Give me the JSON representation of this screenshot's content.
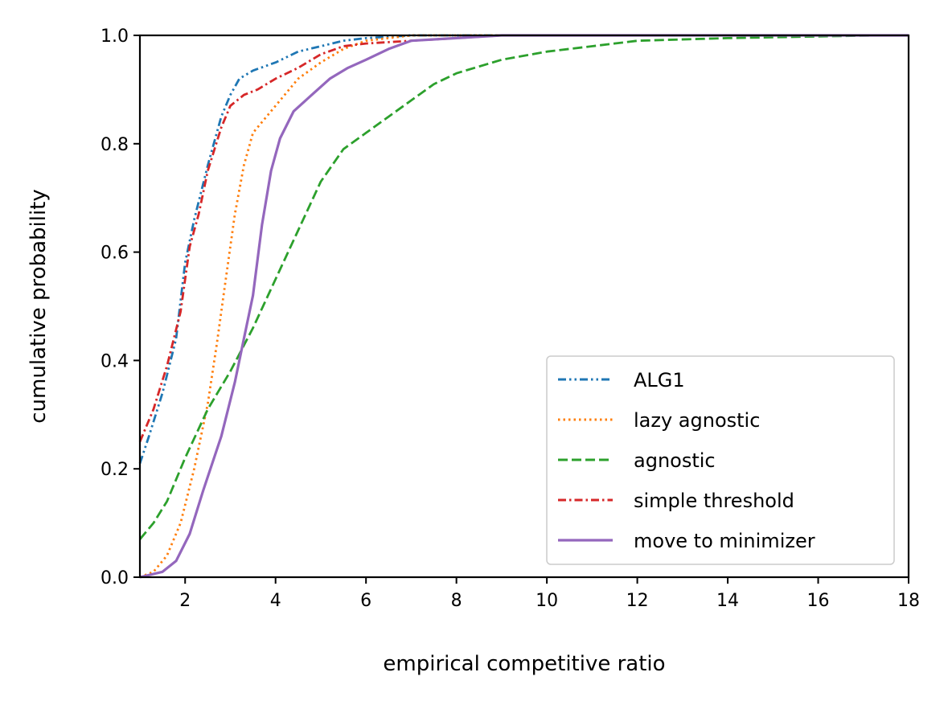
{
  "chart_data": {
    "type": "line",
    "xlabel": "empirical competitive ratio",
    "ylabel": "cumulative probability",
    "xlim": [
      1,
      18
    ],
    "ylim": [
      0,
      1
    ],
    "xticks": [
      2,
      4,
      6,
      8,
      10,
      12,
      14,
      16,
      18
    ],
    "yticks": [
      0.0,
      0.2,
      0.4,
      0.6,
      0.8,
      1.0
    ],
    "ytick_labels": [
      "0.0",
      "0.2",
      "0.4",
      "0.6",
      "0.8",
      "1.0"
    ],
    "grid": false,
    "legend_position": "bottom-right",
    "series": [
      {
        "name": "ALG1",
        "color": "#1f77b4",
        "linestyle": "dashdotdot",
        "points": [
          [
            1.0,
            0.21
          ],
          [
            1.2,
            0.26
          ],
          [
            1.5,
            0.34
          ],
          [
            1.8,
            0.44
          ],
          [
            2.0,
            0.58
          ],
          [
            2.2,
            0.66
          ],
          [
            2.5,
            0.76
          ],
          [
            2.8,
            0.85
          ],
          [
            3.0,
            0.89
          ],
          [
            3.2,
            0.92
          ],
          [
            3.5,
            0.935
          ],
          [
            4.0,
            0.95
          ],
          [
            4.5,
            0.97
          ],
          [
            5.0,
            0.98
          ],
          [
            5.5,
            0.99
          ],
          [
            6.0,
            0.995
          ],
          [
            7.0,
            1.0
          ],
          [
            18.0,
            1.0
          ]
        ]
      },
      {
        "name": "lazy agnostic",
        "color": "#ff7f0e",
        "linestyle": "dotted",
        "points": [
          [
            1.0,
            0.0
          ],
          [
            1.3,
            0.01
          ],
          [
            1.6,
            0.04
          ],
          [
            1.9,
            0.1
          ],
          [
            2.2,
            0.2
          ],
          [
            2.5,
            0.32
          ],
          [
            2.7,
            0.43
          ],
          [
            2.9,
            0.55
          ],
          [
            3.1,
            0.67
          ],
          [
            3.3,
            0.76
          ],
          [
            3.5,
            0.82
          ],
          [
            4.0,
            0.87
          ],
          [
            4.5,
            0.92
          ],
          [
            5.0,
            0.95
          ],
          [
            5.5,
            0.975
          ],
          [
            6.0,
            0.99
          ],
          [
            7.0,
            1.0
          ],
          [
            18.0,
            1.0
          ]
        ]
      },
      {
        "name": "agnostic",
        "color": "#2ca02c",
        "linestyle": "dashed",
        "points": [
          [
            1.0,
            0.07
          ],
          [
            1.3,
            0.1
          ],
          [
            1.6,
            0.14
          ],
          [
            2.0,
            0.22
          ],
          [
            2.5,
            0.31
          ],
          [
            3.0,
            0.38
          ],
          [
            3.5,
            0.46
          ],
          [
            4.0,
            0.55
          ],
          [
            4.5,
            0.64
          ],
          [
            5.0,
            0.73
          ],
          [
            5.5,
            0.79
          ],
          [
            6.0,
            0.82
          ],
          [
            6.5,
            0.85
          ],
          [
            7.0,
            0.88
          ],
          [
            7.5,
            0.91
          ],
          [
            8.0,
            0.93
          ],
          [
            9.0,
            0.955
          ],
          [
            10.0,
            0.97
          ],
          [
            11.0,
            0.98
          ],
          [
            12.0,
            0.99
          ],
          [
            14.0,
            0.995
          ],
          [
            17.3,
            1.0
          ]
        ]
      },
      {
        "name": "simple threshold",
        "color": "#d62728",
        "linestyle": "dashdot",
        "points": [
          [
            1.0,
            0.25
          ],
          [
            1.3,
            0.31
          ],
          [
            1.6,
            0.39
          ],
          [
            1.9,
            0.49
          ],
          [
            2.1,
            0.61
          ],
          [
            2.3,
            0.67
          ],
          [
            2.5,
            0.75
          ],
          [
            2.8,
            0.83
          ],
          [
            3.0,
            0.87
          ],
          [
            3.3,
            0.89
          ],
          [
            3.6,
            0.9
          ],
          [
            4.0,
            0.92
          ],
          [
            4.5,
            0.94
          ],
          [
            5.0,
            0.965
          ],
          [
            5.5,
            0.98
          ],
          [
            6.0,
            0.985
          ],
          [
            7.0,
            0.99
          ],
          [
            8.0,
            0.995
          ],
          [
            9.0,
            1.0
          ],
          [
            18.0,
            1.0
          ]
        ]
      },
      {
        "name": "move to minimizer",
        "color": "#9467bd",
        "linestyle": "solid",
        "points": [
          [
            1.0,
            0.0
          ],
          [
            1.5,
            0.01
          ],
          [
            1.8,
            0.03
          ],
          [
            2.1,
            0.08
          ],
          [
            2.4,
            0.16
          ],
          [
            2.8,
            0.26
          ],
          [
            3.1,
            0.36
          ],
          [
            3.3,
            0.44
          ],
          [
            3.5,
            0.52
          ],
          [
            3.7,
            0.65
          ],
          [
            3.9,
            0.75
          ],
          [
            4.1,
            0.81
          ],
          [
            4.4,
            0.86
          ],
          [
            4.8,
            0.89
          ],
          [
            5.2,
            0.92
          ],
          [
            5.6,
            0.94
          ],
          [
            6.0,
            0.955
          ],
          [
            6.5,
            0.975
          ],
          [
            7.0,
            0.99
          ],
          [
            8.0,
            0.995
          ],
          [
            9.0,
            1.0
          ],
          [
            18.0,
            1.0
          ]
        ]
      }
    ]
  }
}
